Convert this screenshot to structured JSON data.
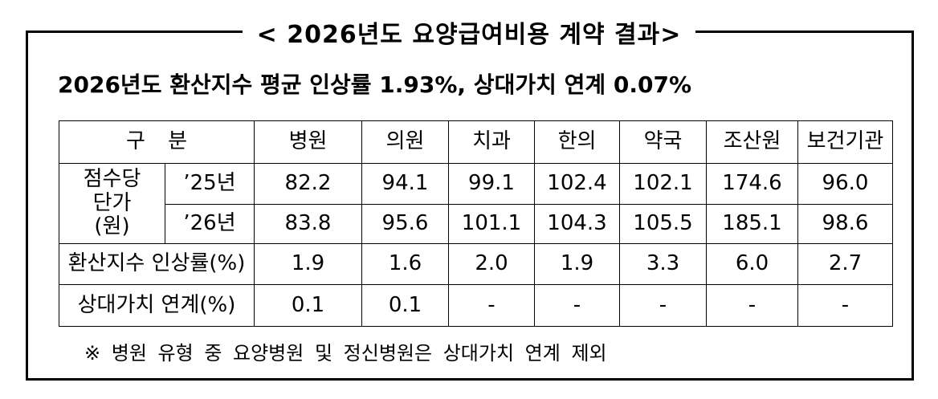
{
  "header": {
    "title": "< 2026년도 요양급여비용 계약 결과>",
    "subtitle": "2026년도 환산지수 평균 인상률 1.93%, 상대가치 연계 0.07%"
  },
  "table": {
    "columns": [
      "구 분",
      "병원",
      "의원",
      "치과",
      "한의",
      "약국",
      "조산원",
      "보건기관"
    ],
    "group_label": "점수당 단가(원)",
    "rows": [
      {
        "label": "’25년",
        "values": [
          "82.2",
          "94.1",
          "99.1",
          "102.4",
          "102.1",
          "174.6",
          "96.0"
        ]
      },
      {
        "label": "’26년",
        "values": [
          "83.8",
          "95.6",
          "101.1",
          "104.3",
          "105.5",
          "185.1",
          "98.6"
        ]
      },
      {
        "label": "환산지수 인상률(%)",
        "values": [
          "1.9",
          "1.6",
          "2.0",
          "1.9",
          "3.3",
          "6.0",
          "2.7"
        ]
      },
      {
        "label": "상대가치 연계(%)",
        "values": [
          "0.1",
          "0.1",
          "-",
          "-",
          "-",
          "-",
          "-"
        ]
      }
    ]
  },
  "note": "※ 병원 유형 중 요양병원 및 정신병원은 상대가치 연계 제외"
}
